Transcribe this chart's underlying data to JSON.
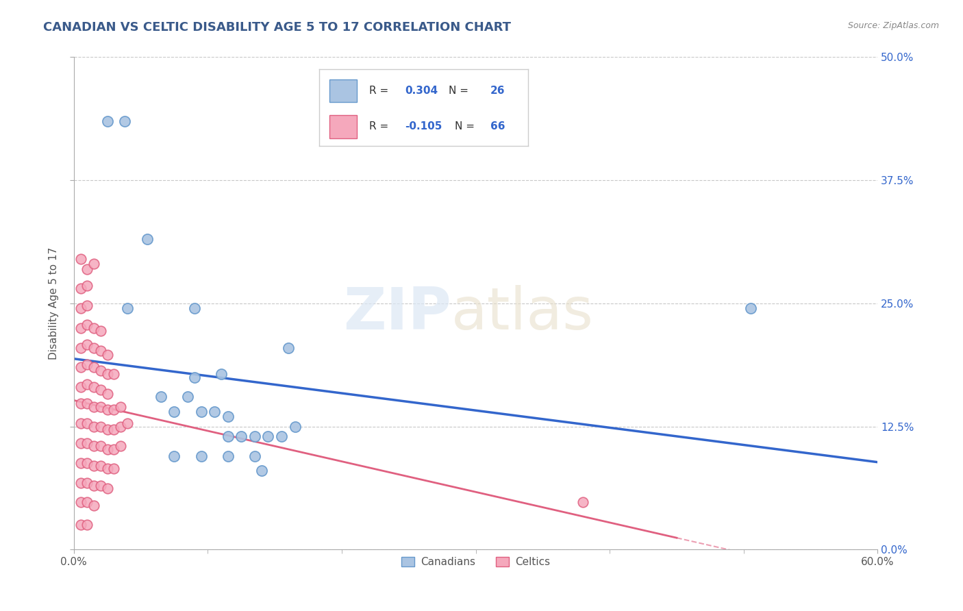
{
  "title": "CANADIAN VS CELTIC DISABILITY AGE 5 TO 17 CORRELATION CHART",
  "source": "Source: ZipAtlas.com",
  "ylabel": "Disability Age 5 to 17",
  "xlim": [
    0.0,
    0.6
  ],
  "ylim": [
    0.0,
    0.5
  ],
  "ytick_positions": [
    0.0,
    0.125,
    0.25,
    0.375,
    0.5
  ],
  "ytick_labels": [
    "0.0%",
    "12.5%",
    "25.0%",
    "37.5%",
    "50.0%"
  ],
  "xtick_positions": [
    0.0,
    0.6
  ],
  "xtick_labels": [
    "0.0%",
    "60.0%"
  ],
  "grid_color": "#c8c8c8",
  "background_color": "#ffffff",
  "canadian_color": "#aac4e2",
  "celtic_color": "#f5a8bc",
  "canadian_edge": "#6699cc",
  "celtic_edge": "#e06080",
  "trend_canadian_color": "#3366cc",
  "trend_celtic_color": "#e06080",
  "canadians_label": "Canadians",
  "celtics_label": "Celtics",
  "canadian_R": 0.304,
  "canadian_N": 26,
  "celtic_R": -0.105,
  "celtic_N": 66,
  "canadian_points": [
    [
      0.025,
      0.435
    ],
    [
      0.038,
      0.435
    ],
    [
      0.055,
      0.315
    ],
    [
      0.04,
      0.245
    ],
    [
      0.09,
      0.245
    ],
    [
      0.16,
      0.205
    ],
    [
      0.09,
      0.175
    ],
    [
      0.11,
      0.178
    ],
    [
      0.065,
      0.155
    ],
    [
      0.075,
      0.14
    ],
    [
      0.085,
      0.155
    ],
    [
      0.095,
      0.14
    ],
    [
      0.105,
      0.14
    ],
    [
      0.115,
      0.135
    ],
    [
      0.115,
      0.115
    ],
    [
      0.125,
      0.115
    ],
    [
      0.135,
      0.115
    ],
    [
      0.145,
      0.115
    ],
    [
      0.155,
      0.115
    ],
    [
      0.165,
      0.125
    ],
    [
      0.075,
      0.095
    ],
    [
      0.095,
      0.095
    ],
    [
      0.115,
      0.095
    ],
    [
      0.135,
      0.095
    ],
    [
      0.14,
      0.08
    ],
    [
      0.505,
      0.245
    ]
  ],
  "celtic_points": [
    [
      0.005,
      0.295
    ],
    [
      0.01,
      0.285
    ],
    [
      0.015,
      0.29
    ],
    [
      0.005,
      0.265
    ],
    [
      0.01,
      0.268
    ],
    [
      0.005,
      0.245
    ],
    [
      0.01,
      0.248
    ],
    [
      0.005,
      0.225
    ],
    [
      0.01,
      0.228
    ],
    [
      0.015,
      0.225
    ],
    [
      0.02,
      0.222
    ],
    [
      0.005,
      0.205
    ],
    [
      0.01,
      0.208
    ],
    [
      0.015,
      0.205
    ],
    [
      0.02,
      0.202
    ],
    [
      0.025,
      0.198
    ],
    [
      0.005,
      0.185
    ],
    [
      0.01,
      0.188
    ],
    [
      0.015,
      0.185
    ],
    [
      0.02,
      0.182
    ],
    [
      0.025,
      0.178
    ],
    [
      0.03,
      0.178
    ],
    [
      0.005,
      0.165
    ],
    [
      0.01,
      0.168
    ],
    [
      0.015,
      0.165
    ],
    [
      0.02,
      0.162
    ],
    [
      0.025,
      0.158
    ],
    [
      0.005,
      0.148
    ],
    [
      0.01,
      0.148
    ],
    [
      0.015,
      0.145
    ],
    [
      0.02,
      0.145
    ],
    [
      0.025,
      0.142
    ],
    [
      0.03,
      0.142
    ],
    [
      0.035,
      0.145
    ],
    [
      0.005,
      0.128
    ],
    [
      0.01,
      0.128
    ],
    [
      0.015,
      0.125
    ],
    [
      0.02,
      0.125
    ],
    [
      0.025,
      0.122
    ],
    [
      0.03,
      0.122
    ],
    [
      0.035,
      0.125
    ],
    [
      0.04,
      0.128
    ],
    [
      0.005,
      0.108
    ],
    [
      0.01,
      0.108
    ],
    [
      0.015,
      0.105
    ],
    [
      0.02,
      0.105
    ],
    [
      0.025,
      0.102
    ],
    [
      0.03,
      0.102
    ],
    [
      0.035,
      0.105
    ],
    [
      0.005,
      0.088
    ],
    [
      0.01,
      0.088
    ],
    [
      0.015,
      0.085
    ],
    [
      0.02,
      0.085
    ],
    [
      0.025,
      0.082
    ],
    [
      0.03,
      0.082
    ],
    [
      0.005,
      0.068
    ],
    [
      0.01,
      0.068
    ],
    [
      0.015,
      0.065
    ],
    [
      0.02,
      0.065
    ],
    [
      0.025,
      0.062
    ],
    [
      0.005,
      0.048
    ],
    [
      0.01,
      0.048
    ],
    [
      0.015,
      0.045
    ],
    [
      0.38,
      0.048
    ],
    [
      0.005,
      0.025
    ],
    [
      0.01,
      0.025
    ]
  ]
}
